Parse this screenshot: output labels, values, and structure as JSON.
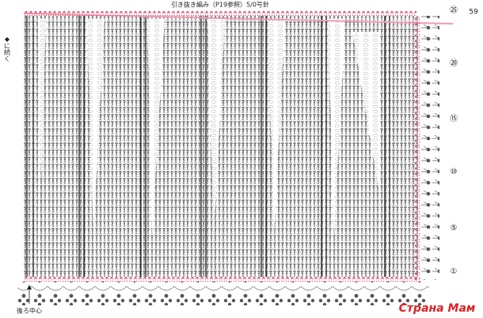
{
  "header": {
    "title": "引き抜き編み（P19参照）5/0号針",
    "page_number": "59"
  },
  "labels": {
    "left_note": "◆に続く",
    "center_back": "後ろ中心"
  },
  "row_numbers": [
    "㉕",
    "⑳",
    "⑮",
    "⑩",
    "⑤",
    "①"
  ],
  "watermark": "Страна Мам"
}
